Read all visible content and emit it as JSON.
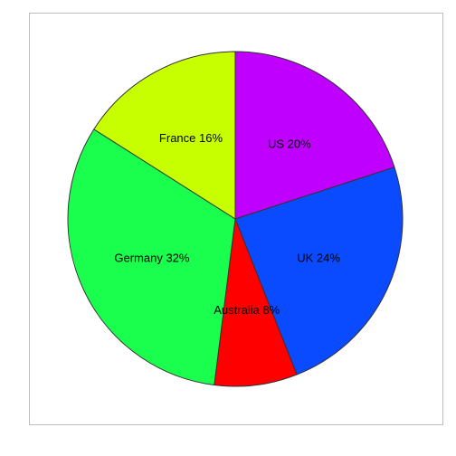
{
  "chart_data": {
    "type": "pie",
    "title": "",
    "legend": "none",
    "start_angle_deg": 90,
    "direction": "clockwise",
    "slices": [
      {
        "label": "US 20%",
        "category": "US",
        "value": 20,
        "color": "#BF00FF"
      },
      {
        "label": "UK 24%",
        "category": "UK",
        "value": 24,
        "color": "#0A4BFF"
      },
      {
        "label": "Australia 8%",
        "category": "Australia",
        "value": 8,
        "color": "#FF0000"
      },
      {
        "label": "Germany 32%",
        "category": "Germany",
        "value": 32,
        "color": "#1AFF4E"
      },
      {
        "label": "France 16%",
        "category": "France",
        "value": 16,
        "color": "#C8FF00"
      }
    ]
  }
}
